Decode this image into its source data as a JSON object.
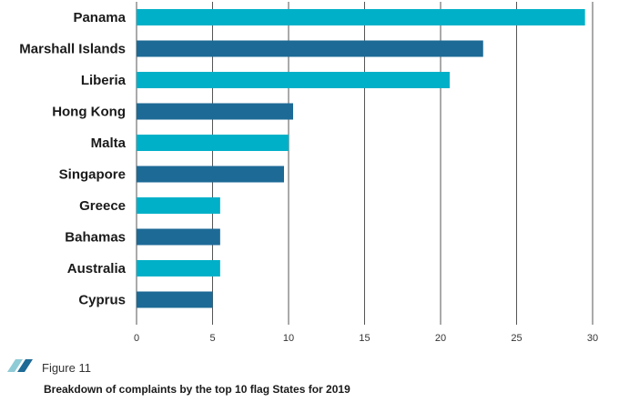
{
  "figure": {
    "label": "Figure 11",
    "caption": "Breakdown of complaints by the top 10 flag States for 2019",
    "icon": "slanted-stripes-icon"
  },
  "colors": {
    "series_a": "#00B0C8",
    "series_b": "#1D6A96",
    "grid": "#555555",
    "icon_light": "#8FCBD6",
    "icon_dark": "#1D6A96"
  },
  "chart_data": {
    "type": "bar",
    "orientation": "horizontal",
    "categories": [
      "Panama",
      "Marshall Islands",
      "Liberia",
      "Hong Kong",
      "Malta",
      "Singapore",
      "Greece",
      "Bahamas",
      "Australia",
      "Cyprus"
    ],
    "values": [
      29.5,
      22.8,
      20.6,
      10.3,
      10.0,
      9.7,
      5.5,
      5.5,
      5.5,
      5.0
    ],
    "xlim": [
      0,
      30
    ],
    "xticks": [
      "0",
      "5",
      "10",
      "15",
      "20",
      "25",
      "30"
    ],
    "xlabel": "",
    "ylabel": "",
    "grid": "vertical",
    "legend": "none"
  }
}
